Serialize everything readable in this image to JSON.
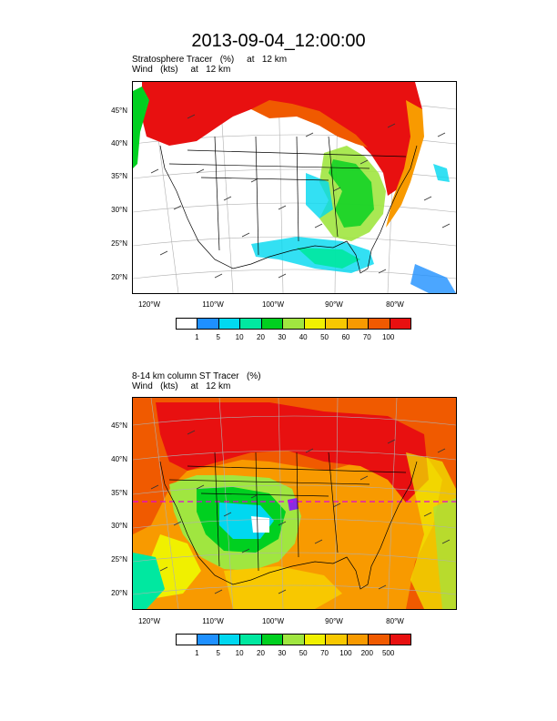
{
  "title": "2013-09-04_12:00:00",
  "panels": [
    {
      "caption_line1": "Stratosphere Tracer   (%)     at   12 km",
      "caption_line2": "Wind   (kts)     at   12 km",
      "lat_labels": [
        "45°N",
        "40°N",
        "35°N",
        "30°N",
        "25°N",
        "20°N"
      ],
      "lon_labels": [
        "120°W",
        "110°W",
        "100°W",
        "90°W",
        "80°W"
      ],
      "colorbar_colors": [
        "#ffffff",
        "#1e90ff",
        "#00d8f0",
        "#00e8a0",
        "#00d020",
        "#a0e640",
        "#f0f000",
        "#f8c800",
        "#f89a00",
        "#f05a00",
        "#e81010"
      ],
      "colorbar_labels": [
        "1",
        "5",
        "10",
        "20",
        "30",
        "40",
        "50",
        "60",
        "70",
        "100"
      ]
    },
    {
      "caption_line1": "8-14 km column ST Tracer   (%)",
      "caption_line2": "Wind   (kts)     at   12 km",
      "lat_labels": [
        "45°N",
        "40°N",
        "35°N",
        "30°N",
        "25°N",
        "20°N"
      ],
      "lon_labels": [
        "120°W",
        "110°W",
        "100°W",
        "90°W",
        "80°W"
      ],
      "colorbar_colors": [
        "#ffffff",
        "#1e90ff",
        "#00d8f0",
        "#00e8a0",
        "#00d020",
        "#a0e640",
        "#f0f000",
        "#f8c800",
        "#f89a00",
        "#f05a00",
        "#e81010"
      ],
      "colorbar_labels": [
        "1",
        "5",
        "10",
        "20",
        "30",
        "50",
        "70",
        "100",
        "200",
        "500"
      ]
    }
  ]
}
